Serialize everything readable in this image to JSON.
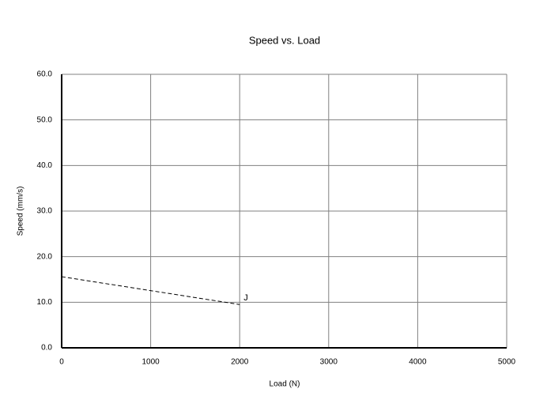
{
  "chart_data": {
    "type": "line",
    "title": "Speed vs. Load",
    "x_label": "Load (N)",
    "y_label": "Speed (mm/s)",
    "x": [
      0,
      2000
    ],
    "series": [
      {
        "name": "J",
        "color": "#000000",
        "line_style": "dashed",
        "values": [
          15.6,
          9.5
        ]
      }
    ],
    "xlim": [
      0,
      5000
    ],
    "xticks": [
      0,
      1000,
      2000,
      3000,
      4000,
      5000
    ],
    "ylim": [
      0,
      60
    ],
    "yticks": [
      {
        "value": 0,
        "label": "0.0"
      },
      {
        "value": 10,
        "label": "10.0"
      },
      {
        "value": 20,
        "label": "20.0"
      },
      {
        "value": 30,
        "label": "30.0"
      },
      {
        "value": 40,
        "label": "40.0"
      },
      {
        "value": 50,
        "label": "50.0"
      },
      {
        "value": 60,
        "label": "60.0"
      }
    ],
    "grid": true
  }
}
